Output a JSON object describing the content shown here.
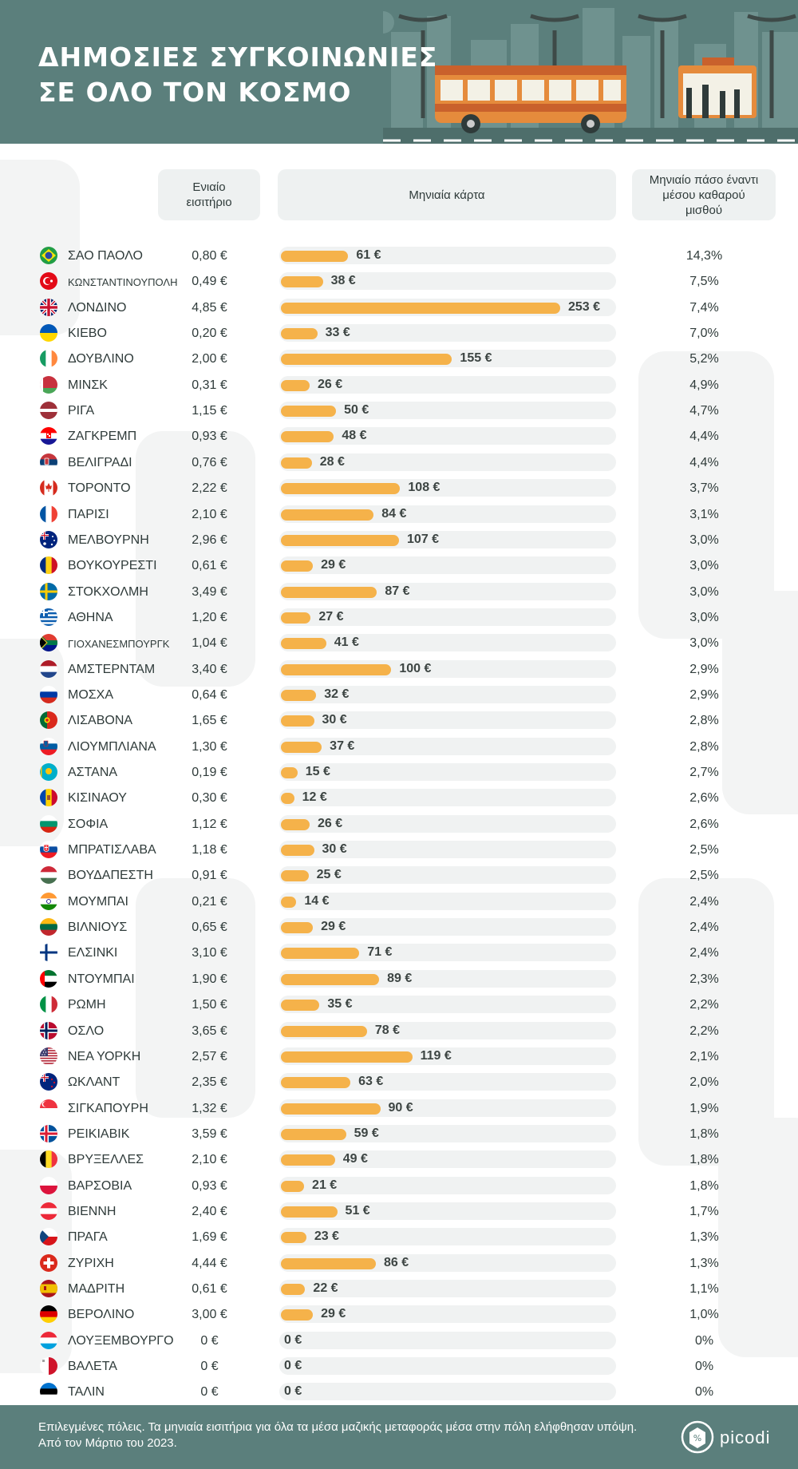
{
  "header": {
    "title_line1": "ΔΗΜΟΣΙΕΣ ΣΥΓΚΟΙΝΩΝΙΕΣ",
    "title_line2": "ΣΕ ΟΛΟ ΤΟΝ ΚΟΣΜΟ",
    "background": "#5b7f7c"
  },
  "columns": {
    "single": "Ενιαίο εισιτήριο",
    "monthly": "Μηνιαία κάρτα",
    "ratio": "Μηνιαίο πάσο έναντι μέσου καθαρού μισθού"
  },
  "chart_data": {
    "type": "bar",
    "title": "ΔΗΜΟΣΙΕΣ ΣΥΓΚΟΙΝΩΝΙΕΣ ΣΕ ΟΛΟ ΤΟΝ ΚΟΣΜΟ",
    "series_name": "Μηνιαία κάρτα",
    "unit": "€",
    "xlim": [
      0,
      253
    ],
    "bar_color": "#f5b24a",
    "rows": [
      {
        "city": "ΣΑΟ ΠΑΟΛΟ",
        "flag": "brazil",
        "single": "0,80 €",
        "monthly": 61,
        "monthly_label": "61 €",
        "ratio": "14,3%"
      },
      {
        "city": "ΚΩΝΣΤΑΝΤΙΝΟΥΠΟΛΗ",
        "flag": "turkey",
        "single": "0,49 €",
        "monthly": 38,
        "monthly_label": "38 €",
        "ratio": "7,5%",
        "small": true
      },
      {
        "city": "ΛΟΝΔΙΝΟ",
        "flag": "uk",
        "single": "4,85 €",
        "monthly": 253,
        "monthly_label": "253 €",
        "ratio": "7,4%"
      },
      {
        "city": "ΚΙΕΒΟ",
        "flag": "ukraine",
        "single": "0,20 €",
        "monthly": 33,
        "monthly_label": "33 €",
        "ratio": "7,0%"
      },
      {
        "city": "ΔΟΥΒΛΙΝΟ",
        "flag": "ireland",
        "single": "2,00 €",
        "monthly": 155,
        "monthly_label": "155 €",
        "ratio": "5,2%"
      },
      {
        "city": "ΜΙΝΣΚ",
        "flag": "belarus",
        "single": "0,31 €",
        "monthly": 26,
        "monthly_label": "26 €",
        "ratio": "4,9%"
      },
      {
        "city": "ΡΙΓΑ",
        "flag": "latvia",
        "single": "1,15 €",
        "monthly": 50,
        "monthly_label": "50 €",
        "ratio": "4,7%"
      },
      {
        "city": "ΖΑΓΚΡΕΜΠ",
        "flag": "croatia",
        "single": "0,93 €",
        "monthly": 48,
        "monthly_label": "48 €",
        "ratio": "4,4%"
      },
      {
        "city": "ΒΕΛΙΓΡΑΔΙ",
        "flag": "serbia",
        "single": "0,76 €",
        "monthly": 28,
        "monthly_label": "28 €",
        "ratio": "4,4%"
      },
      {
        "city": "ΤΟΡΟΝΤΟ",
        "flag": "canada",
        "single": "2,22 €",
        "monthly": 108,
        "monthly_label": "108 €",
        "ratio": "3,7%"
      },
      {
        "city": "ΠΑΡΙΣΙ",
        "flag": "france",
        "single": "2,10 €",
        "monthly": 84,
        "monthly_label": "84 €",
        "ratio": "3,1%"
      },
      {
        "city": "ΜΕΛΒΟΥΡΝΗ",
        "flag": "australia",
        "single": "2,96 €",
        "monthly": 107,
        "monthly_label": "107 €",
        "ratio": "3,0%"
      },
      {
        "city": "ΒΟΥΚΟΥΡΕΣΤΙ",
        "flag": "romania",
        "single": "0,61 €",
        "monthly": 29,
        "monthly_label": "29 €",
        "ratio": "3,0%"
      },
      {
        "city": "ΣΤΟΚΧΟΛΜΗ",
        "flag": "sweden",
        "single": "3,49 €",
        "monthly": 87,
        "monthly_label": "87 €",
        "ratio": "3,0%"
      },
      {
        "city": "ΑΘΗΝΑ",
        "flag": "greece",
        "single": "1,20 €",
        "monthly": 27,
        "monthly_label": "27 €",
        "ratio": "3,0%"
      },
      {
        "city": "ΓΙΟΧΑΝΕΣΜΠΟΥΡΓΚ",
        "flag": "southafrica",
        "single": "1,04 €",
        "monthly": 41,
        "monthly_label": "41 €",
        "ratio": "3,0%",
        "small": true
      },
      {
        "city": "ΑΜΣΤΕΡΝΤΑΜ",
        "flag": "netherlands",
        "single": "3,40 €",
        "monthly": 100,
        "monthly_label": "100 €",
        "ratio": "2,9%"
      },
      {
        "city": "ΜΟΣΧΑ",
        "flag": "russia",
        "single": "0,64 €",
        "monthly": 32,
        "monthly_label": "32 €",
        "ratio": "2,9%"
      },
      {
        "city": "ΛΙΣΑΒΟΝΑ",
        "flag": "portugal",
        "single": "1,65 €",
        "monthly": 30,
        "monthly_label": "30 €",
        "ratio": "2,8%"
      },
      {
        "city": "ΛΙΟΥΜΠΛΙΑΝΑ",
        "flag": "slovenia",
        "single": "1,30 €",
        "monthly": 37,
        "monthly_label": "37 €",
        "ratio": "2,8%"
      },
      {
        "city": "ΑΣΤΑΝΑ",
        "flag": "kazakhstan",
        "single": "0,19 €",
        "monthly": 15,
        "monthly_label": "15 €",
        "ratio": "2,7%"
      },
      {
        "city": "ΚΙΣΙΝΑΟΥ",
        "flag": "moldova",
        "single": "0,30 €",
        "monthly": 12,
        "monthly_label": "12 €",
        "ratio": "2,6%"
      },
      {
        "city": "ΣΟΦΙΑ",
        "flag": "bulgaria",
        "single": "1,12 €",
        "monthly": 26,
        "monthly_label": "26 €",
        "ratio": "2,6%"
      },
      {
        "city": "ΜΠΡΑΤΙΣΛΑΒΑ",
        "flag": "slovakia",
        "single": "1,18 €",
        "monthly": 30,
        "monthly_label": "30 €",
        "ratio": "2,5%"
      },
      {
        "city": "ΒΟΥΔΑΠΕΣΤΗ",
        "flag": "hungary",
        "single": "0,91 €",
        "monthly": 25,
        "monthly_label": "25 €",
        "ratio": "2,5%"
      },
      {
        "city": "ΜΟΥΜΠΑΙ",
        "flag": "india",
        "single": "0,21 €",
        "monthly": 14,
        "monthly_label": "14 €",
        "ratio": "2,4%"
      },
      {
        "city": "ΒΙΛΝΙΟΥΣ",
        "flag": "lithuania",
        "single": "0,65 €",
        "monthly": 29,
        "monthly_label": "29 €",
        "ratio": "2,4%"
      },
      {
        "city": "ΕΛΣΙΝΚΙ",
        "flag": "finland",
        "single": "3,10 €",
        "monthly": 71,
        "monthly_label": "71 €",
        "ratio": "2,4%"
      },
      {
        "city": "ΝΤΟΥΜΠΑΙ",
        "flag": "uae",
        "single": "1,90 €",
        "monthly": 89,
        "monthly_label": "89 €",
        "ratio": "2,3%"
      },
      {
        "city": "ΡΩΜΗ",
        "flag": "italy",
        "single": "1,50 €",
        "monthly": 35,
        "monthly_label": "35 €",
        "ratio": "2,2%"
      },
      {
        "city": "ΟΣΛΟ",
        "flag": "norway",
        "single": "3,65 €",
        "monthly": 78,
        "monthly_label": "78 €",
        "ratio": "2,2%"
      },
      {
        "city": "ΝΕΑ ΥΟΡΚΗ",
        "flag": "usa",
        "single": "2,57 €",
        "monthly": 119,
        "monthly_label": "119 €",
        "ratio": "2,1%"
      },
      {
        "city": "ΩΚΛΑΝΤ",
        "flag": "newzealand",
        "single": "2,35 €",
        "monthly": 63,
        "monthly_label": "63 €",
        "ratio": "2,0%"
      },
      {
        "city": "ΣΙΓΚΑΠΟΥΡΗ",
        "flag": "singapore",
        "single": "1,32 €",
        "monthly": 90,
        "monthly_label": "90 €",
        "ratio": "1,9%"
      },
      {
        "city": "ΡΕΙΚΙΑΒΙΚ",
        "flag": "iceland",
        "single": "3,59 €",
        "monthly": 59,
        "monthly_label": "59 €",
        "ratio": "1,8%"
      },
      {
        "city": "ΒΡΥΞΕΛΛΕΣ",
        "flag": "belgium",
        "single": "2,10 €",
        "monthly": 49,
        "monthly_label": "49 €",
        "ratio": "1,8%"
      },
      {
        "city": "ΒΑΡΣΟΒΙΑ",
        "flag": "poland",
        "single": "0,93 €",
        "monthly": 21,
        "monthly_label": "21 €",
        "ratio": "1,8%"
      },
      {
        "city": "ΒΙΕΝΝΗ",
        "flag": "austria",
        "single": "2,40 €",
        "monthly": 51,
        "monthly_label": "51 €",
        "ratio": "1,7%"
      },
      {
        "city": "ΠΡΑΓΑ",
        "flag": "czech",
        "single": "1,69 €",
        "monthly": 23,
        "monthly_label": "23 €",
        "ratio": "1,3%"
      },
      {
        "city": "ΖΥΡΙΧΗ",
        "flag": "switzerland",
        "single": "4,44 €",
        "monthly": 86,
        "monthly_label": "86 €",
        "ratio": "1,3%"
      },
      {
        "city": "ΜΑΔΡΙΤΗ",
        "flag": "spain",
        "single": "0,61 €",
        "monthly": 22,
        "monthly_label": "22 €",
        "ratio": "1,1%"
      },
      {
        "city": "ΒΕΡΟΛΙΝΟ",
        "flag": "germany",
        "single": "3,00 €",
        "monthly": 29,
        "monthly_label": "29 €",
        "ratio": "1,0%"
      },
      {
        "city": "ΛΟΥΞΕΜΒΟΥΡΓΟ",
        "flag": "luxembourg",
        "single": "0 €",
        "monthly": 0,
        "monthly_label": "0 €",
        "ratio": "0%"
      },
      {
        "city": "ΒΑΛΕΤΑ",
        "flag": "malta",
        "single": "0 €",
        "monthly": 0,
        "monthly_label": "0 €",
        "ratio": "0%"
      },
      {
        "city": "ΤΑΛΙΝ",
        "flag": "estonia",
        "single": "0 €",
        "monthly": 0,
        "monthly_label": "0 €",
        "ratio": "0%"
      }
    ]
  },
  "footer": {
    "note": "Επιλεγμένες πόλεις. Τα μηνιαία εισιτήρια για όλα τα μέσα μαζικής μεταφοράς μέσα στην πόλη ελήφθησαν υπόψη. Από τον Μάρτιο του 2023.",
    "brand": "picodi",
    "logo_icon": "picodi-tag-icon"
  }
}
